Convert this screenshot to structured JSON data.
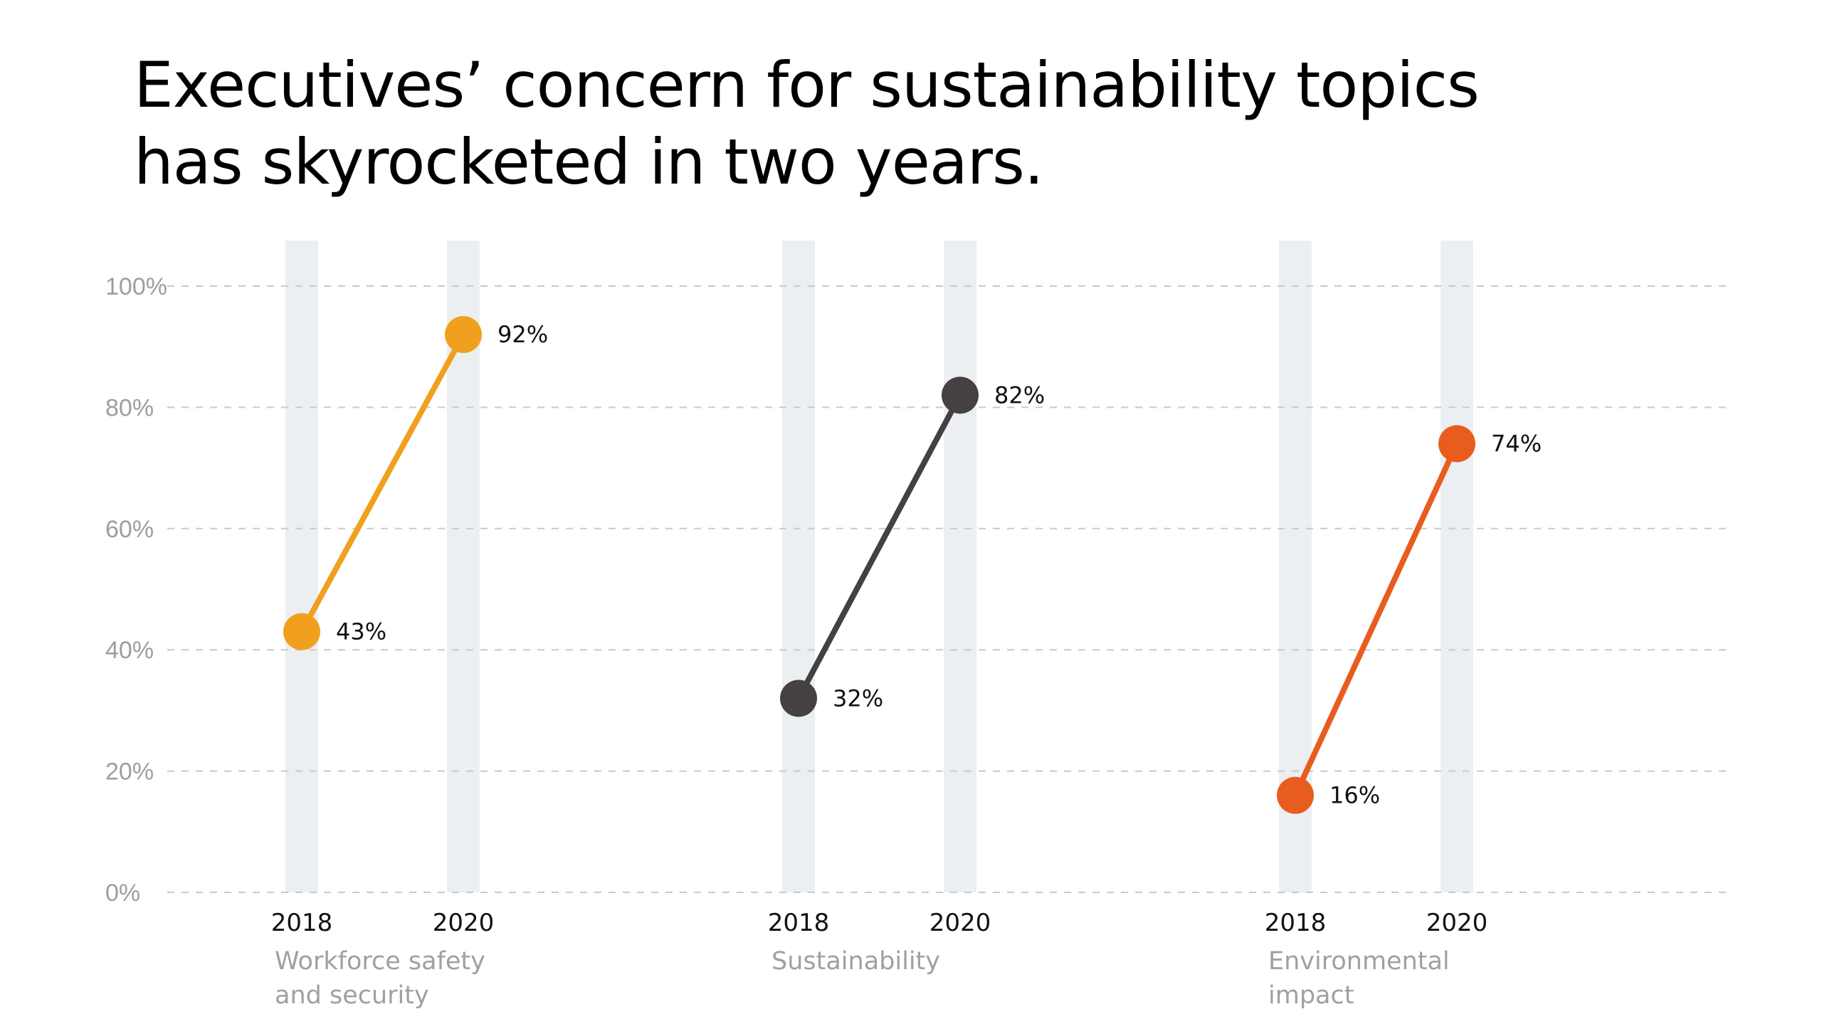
{
  "title_lines": [
    "Executives’ concern for sustainability topics",
    "has skyrocketed in two years."
  ],
  "chart_data": {
    "type": "slope",
    "title": "Executives’ concern for sustainability topics has skyrocketed in two years.",
    "ylim": [
      0,
      100
    ],
    "y_ticks": [
      "0%",
      "20%",
      "40%",
      "60%",
      "80%",
      "100%"
    ],
    "y_tick_values": [
      0,
      20,
      40,
      60,
      80,
      100
    ],
    "grid": "dashed horizontal",
    "x_labels": [
      "2018",
      "2020"
    ],
    "series": [
      {
        "name": "Workforce safety and security",
        "label_lines": [
          "Workforce safety",
          "and security"
        ],
        "values": [
          43,
          92
        ],
        "value_labels": [
          "43%",
          "92%"
        ],
        "color": "#f0a01e"
      },
      {
        "name": "Sustainability",
        "label_lines": [
          "Sustainability"
        ],
        "values": [
          32,
          82
        ],
        "value_labels": [
          "32%",
          "82%"
        ],
        "color": "#454140"
      },
      {
        "name": "Environmental impact",
        "label_lines": [
          "Environmental",
          "impact"
        ],
        "values": [
          16,
          74
        ],
        "value_labels": [
          "16%",
          "74%"
        ],
        "color": "#e85c1e"
      }
    ]
  }
}
